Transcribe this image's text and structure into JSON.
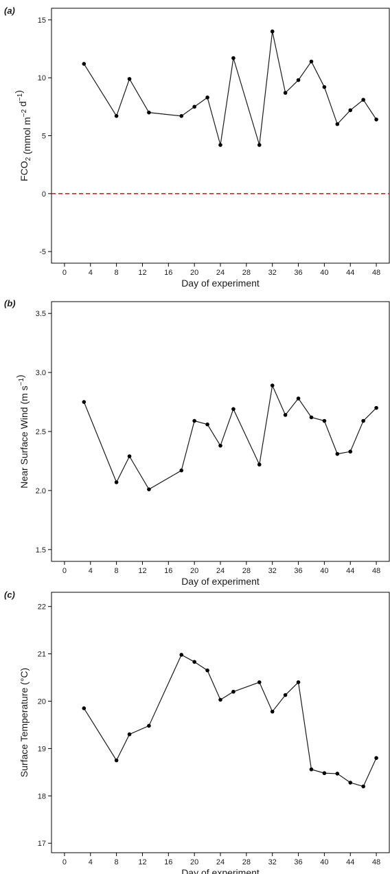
{
  "chart_data": [
    {
      "type": "line",
      "panel_label": "(a)",
      "xlabel": "Day of experiment",
      "ylabel_parts": [
        "FCO",
        "2",
        " (mmol  m",
        "−2",
        "  d",
        "−1",
        ")"
      ],
      "xlim": [
        -2,
        50
      ],
      "ylim": [
        -6,
        16
      ],
      "xticks": [
        "0",
        "4",
        "8",
        "12",
        "16",
        "20",
        "24",
        "28",
        "32",
        "36",
        "40",
        "44",
        "48"
      ],
      "yticks": [
        "-5",
        "0",
        "5",
        "10",
        "15"
      ],
      "reference_line": {
        "y": 0,
        "color": "#e31a1c",
        "style": "dashed"
      },
      "x": [
        3,
        8,
        10,
        13,
        18,
        20,
        22,
        24,
        26,
        30,
        32,
        34,
        36,
        38,
        40,
        42,
        44,
        46,
        48
      ],
      "y": [
        11.2,
        6.7,
        9.9,
        7.0,
        6.7,
        7.5,
        8.3,
        4.2,
        11.7,
        4.2,
        14.0,
        8.7,
        9.8,
        11.4,
        9.2,
        6.0,
        7.2,
        8.1,
        6.4
      ]
    },
    {
      "type": "line",
      "panel_label": "(b)",
      "xlabel": "Day of experiment",
      "ylabel_parts": [
        "Near Surface Wind (m  s",
        "−1",
        ")"
      ],
      "xlim": [
        -2,
        50
      ],
      "ylim": [
        1.4,
        3.6
      ],
      "xticks": [
        "0",
        "4",
        "8",
        "12",
        "16",
        "20",
        "24",
        "28",
        "32",
        "36",
        "40",
        "44",
        "48"
      ],
      "yticks": [
        "1.5",
        "2.0",
        "2.5",
        "3.0",
        "3.5"
      ],
      "x": [
        3,
        8,
        10,
        13,
        18,
        20,
        22,
        24,
        26,
        30,
        32,
        34,
        36,
        38,
        40,
        42,
        44,
        46,
        48
      ],
      "y": [
        2.75,
        2.07,
        2.29,
        2.01,
        2.17,
        2.59,
        2.56,
        2.38,
        2.69,
        2.22,
        2.89,
        2.64,
        2.78,
        2.62,
        2.59,
        2.31,
        2.33,
        2.59,
        2.7
      ]
    },
    {
      "type": "line",
      "panel_label": "(c)",
      "xlabel": "Day of experiment",
      "ylabel_parts": [
        "Surface Temperature (°C)"
      ],
      "xlim": [
        -2,
        50
      ],
      "ylim": [
        16.8,
        22.3
      ],
      "xticks": [
        "0",
        "4",
        "8",
        "12",
        "16",
        "20",
        "24",
        "28",
        "32",
        "36",
        "40",
        "44",
        "48"
      ],
      "yticks": [
        "17",
        "18",
        "19",
        "20",
        "21",
        "22"
      ],
      "x": [
        3,
        8,
        10,
        13,
        18,
        20,
        22,
        24,
        26,
        30,
        32,
        34,
        36,
        38,
        40,
        42,
        44,
        46,
        48
      ],
      "y": [
        19.85,
        18.75,
        19.3,
        19.48,
        20.98,
        20.83,
        20.65,
        20.03,
        20.2,
        20.4,
        19.78,
        20.13,
        20.4,
        18.56,
        18.48,
        18.47,
        18.28,
        18.2,
        18.8
      ]
    }
  ]
}
